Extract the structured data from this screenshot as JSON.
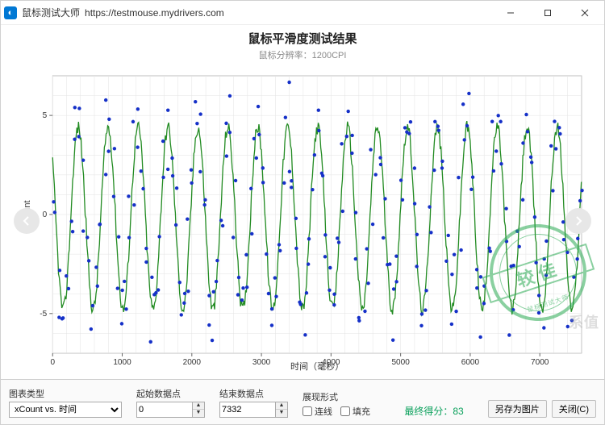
{
  "window": {
    "app_name": "鼠标测试大师",
    "url": "https://testmouse.mydrivers.com"
  },
  "chart": {
    "title": "鼠标平滑度测试结果",
    "subtitle": "鼠标分辨率：1200CPI",
    "ylabel": "xCount",
    "xlabel": "时间（毫秒）",
    "xlim": [
      0,
      7600
    ],
    "ylim": [
      -7,
      7
    ],
    "xtick_step": 1000,
    "yticks": [
      -5,
      0,
      5
    ],
    "plot_bg": "#ffffff",
    "grid_color": "#e3e3e3",
    "axis_color": "#666666",
    "tick_font_size": 10,
    "label_font_size": 11,
    "line": {
      "color": "#228b22",
      "width": 1.3
    },
    "scatter": {
      "color": "#1530c8",
      "size": 2.2,
      "x_step": 60,
      "jitter": 0.7
    },
    "wave": {
      "amplitude": 4.6,
      "period_ms": 430,
      "phase_ms": 260,
      "baseline": -0.2,
      "noise": 0.35
    },
    "inner_width": 640,
    "inner_height": 320,
    "margin": {
      "l": 42,
      "r": 6,
      "t": 6,
      "b": 22
    }
  },
  "controls": {
    "chart_type_label": "图表类型",
    "chart_type_value": "xCount vs. 时间",
    "start_label": "起始数据点",
    "start_value": "0",
    "end_label": "结束数据点",
    "end_value": "7332",
    "render_label": "展现形式",
    "lines_label": "连线",
    "fill_label": "填充",
    "lines_checked": false,
    "fill_checked": false,
    "score_label": "最终得分：",
    "score_value": "83",
    "score_color": "#09a05b",
    "save_btn": "另存为图片",
    "close_btn": "关闭(C)"
  },
  "stamp": {
    "text": "较佳",
    "sub": "鼠标测试大师",
    "color": "#2bab54"
  }
}
